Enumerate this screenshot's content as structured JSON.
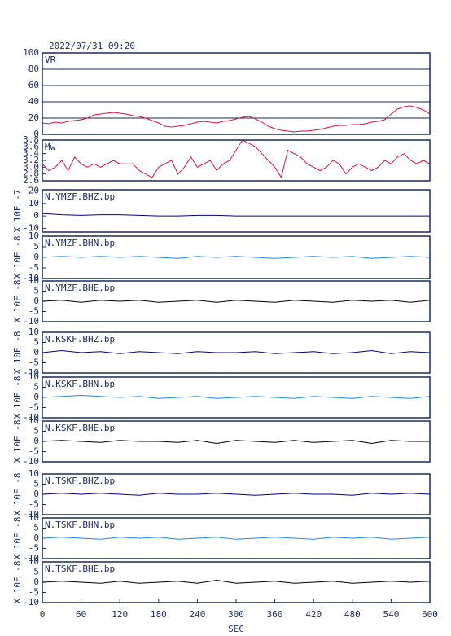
{
  "chart_data": [
    {
      "type": "line",
      "title": "2022/07/31 09:20",
      "xlim": [
        0,
        600
      ],
      "ylim": [
        0,
        100
      ],
      "yticks": [
        0,
        20,
        40,
        60,
        80,
        100
      ],
      "grid": true,
      "x": [
        0,
        10,
        20,
        30,
        40,
        50,
        60,
        70,
        80,
        90,
        100,
        110,
        120,
        130,
        140,
        150,
        160,
        170,
        180,
        190,
        200,
        210,
        220,
        230,
        240,
        250,
        260,
        270,
        280,
        290,
        300,
        310,
        320,
        330,
        340,
        350,
        360,
        370,
        380,
        390,
        400,
        410,
        420,
        430,
        440,
        450,
        460,
        470,
        480,
        490,
        500,
        510,
        520,
        530,
        540,
        550,
        560,
        570,
        580,
        590,
        600
      ],
      "series": [
        {
          "name": "VR",
          "color": "#e0103c",
          "values": [
            14,
            13,
            15,
            14,
            16,
            17,
            18,
            20,
            24,
            25,
            26,
            27,
            26,
            25,
            23,
            22,
            20,
            17,
            14,
            10,
            9,
            10,
            11,
            13,
            15,
            16,
            15,
            14,
            16,
            17,
            19,
            21,
            22,
            19,
            15,
            10,
            7,
            5,
            4,
            3,
            4,
            4,
            5,
            6,
            8,
            10,
            11,
            11,
            12,
            12,
            13,
            15,
            16,
            18,
            25,
            31,
            34,
            35,
            33,
            30,
            25
          ]
        }
      ]
    },
    {
      "type": "line",
      "xlim": [
        0,
        600
      ],
      "ylim": [
        2.6,
        3.8
      ],
      "yticks": [
        2.6,
        2.8,
        {
          "value": 3,
          "label": "3.0"
        },
        3.2,
        3.4,
        3.6,
        3.8
      ],
      "grid": false,
      "x": [
        0,
        10,
        20,
        30,
        40,
        50,
        60,
        70,
        80,
        90,
        100,
        110,
        120,
        130,
        140,
        150,
        160,
        170,
        180,
        190,
        200,
        210,
        220,
        230,
        240,
        250,
        260,
        270,
        280,
        290,
        300,
        310,
        320,
        330,
        340,
        350,
        360,
        370,
        380,
        390,
        400,
        410,
        420,
        430,
        440,
        450,
        460,
        470,
        480,
        490,
        500,
        510,
        520,
        530,
        540,
        550,
        560,
        570,
        580,
        590,
        600
      ],
      "series": [
        {
          "name": "Mw",
          "color": "#e0103c",
          "values": [
            3.1,
            2.9,
            3.0,
            3.2,
            2.9,
            3.3,
            3.1,
            3.0,
            3.1,
            3.0,
            3.1,
            3.2,
            3.1,
            3.1,
            3.1,
            2.9,
            2.8,
            2.7,
            3.0,
            3.1,
            3.2,
            2.8,
            3.0,
            3.3,
            3.0,
            3.1,
            3.2,
            2.9,
            3.1,
            3.2,
            3.5,
            3.8,
            3.7,
            3.6,
            3.4,
            3.2,
            3.0,
            2.7,
            3.5,
            3.4,
            3.3,
            3.1,
            3.0,
            2.9,
            3.0,
            3.2,
            3.1,
            2.8,
            3.0,
            3.1,
            3.0,
            2.9,
            3.0,
            3.2,
            3.1,
            3.3,
            3.4,
            3.2,
            3.1,
            3.2,
            3.1
          ]
        }
      ]
    },
    {
      "type": "line",
      "ylabel": "X 10E -7",
      "xlim": [
        0,
        600
      ],
      "ylim": [
        -13,
        21
      ],
      "yticks": [
        -10,
        0,
        10,
        20
      ],
      "grid": false,
      "x": [
        0,
        30,
        60,
        90,
        120,
        150,
        180,
        210,
        240,
        270,
        300,
        330,
        360,
        390,
        420,
        450,
        480,
        510,
        540,
        570,
        600
      ],
      "series": [
        {
          "name": "N.YMZF.BHZ.bp",
          "color": "#00008b",
          "values": [
            2,
            1,
            0.5,
            1,
            1,
            0.5,
            0,
            0,
            0.5,
            0.5,
            0,
            0,
            0,
            0,
            0,
            0,
            0,
            0,
            0,
            0,
            0
          ]
        }
      ]
    },
    {
      "type": "line",
      "ylabel": "X 10E -8",
      "xlim": [
        0,
        600
      ],
      "ylim": [
        -10,
        10
      ],
      "yticks": [
        -10,
        -5,
        0,
        5,
        10
      ],
      "grid": false,
      "x": [
        0,
        30,
        60,
        90,
        120,
        150,
        180,
        210,
        240,
        270,
        300,
        330,
        360,
        390,
        420,
        450,
        480,
        510,
        540,
        570,
        600
      ],
      "series": [
        {
          "name": "N.YMZF.BHN.bp",
          "color": "#1e88e5",
          "values": [
            0,
            0.5,
            0,
            0.5,
            0,
            0.5,
            0,
            -0.5,
            0.5,
            0,
            0.5,
            0,
            -0.5,
            0,
            0.5,
            0,
            0.5,
            -0.5,
            0,
            0.5,
            0
          ]
        }
      ]
    },
    {
      "type": "line",
      "ylabel": "X 10E -8",
      "xlim": [
        0,
        600
      ],
      "ylim": [
        -10,
        10
      ],
      "yticks": [
        -10,
        -5,
        0,
        5,
        10
      ],
      "grid": false,
      "x": [
        0,
        30,
        60,
        90,
        120,
        150,
        180,
        210,
        240,
        270,
        300,
        330,
        360,
        390,
        420,
        450,
        480,
        510,
        540,
        570,
        600
      ],
      "series": [
        {
          "name": "N.YMZF.BHE.bp",
          "color": "#000000",
          "values": [
            0,
            0.5,
            -0.5,
            0.5,
            0,
            0.5,
            -0.5,
            0,
            0.5,
            -0.5,
            0.5,
            0,
            -0.5,
            0.5,
            0,
            -0.5,
            0.5,
            0,
            0.5,
            -0.5,
            0.5
          ]
        }
      ]
    },
    {
      "type": "line",
      "ylabel": "X 10E -8",
      "xlim": [
        0,
        600
      ],
      "ylim": [
        -10,
        10
      ],
      "yticks": [
        -10,
        -5,
        0,
        5,
        10
      ],
      "grid": false,
      "x": [
        0,
        30,
        60,
        90,
        120,
        150,
        180,
        210,
        240,
        270,
        300,
        330,
        360,
        390,
        420,
        450,
        480,
        510,
        540,
        570,
        600
      ],
      "series": [
        {
          "name": "N.KSKF.BHZ.bp",
          "color": "#00008b",
          "values": [
            0,
            1,
            0,
            0.5,
            -0.5,
            0.5,
            0,
            -0.5,
            0.5,
            0,
            0,
            0.5,
            -0.5,
            0,
            0.5,
            -0.5,
            0,
            1,
            -0.5,
            0.5,
            0
          ]
        }
      ]
    },
    {
      "type": "line",
      "ylabel": "X 10E -8",
      "xlim": [
        0,
        600
      ],
      "ylim": [
        -10,
        10
      ],
      "yticks": [
        -10,
        -5,
        0,
        5,
        10
      ],
      "grid": false,
      "x": [
        0,
        30,
        60,
        90,
        120,
        150,
        180,
        210,
        240,
        270,
        300,
        330,
        360,
        390,
        420,
        450,
        480,
        510,
        540,
        570,
        600
      ],
      "series": [
        {
          "name": "N.KSKF.BHN.bp",
          "color": "#1e88e5",
          "values": [
            0,
            0.5,
            1,
            0.5,
            0,
            0.5,
            -0.5,
            0,
            0.5,
            -0.5,
            0,
            0.5,
            0,
            -0.5,
            0.5,
            0,
            -0.5,
            0.5,
            0,
            -0.5,
            0.5
          ]
        }
      ]
    },
    {
      "type": "line",
      "ylabel": "X 10E -8",
      "xlim": [
        0,
        600
      ],
      "ylim": [
        -10,
        10
      ],
      "yticks": [
        -10,
        -5,
        0,
        5,
        10
      ],
      "grid": false,
      "x": [
        0,
        30,
        60,
        90,
        120,
        150,
        180,
        210,
        240,
        270,
        300,
        330,
        360,
        390,
        420,
        450,
        480,
        510,
        540,
        570,
        600
      ],
      "series": [
        {
          "name": "N.KSKF.BHE.bp",
          "color": "#000000",
          "values": [
            0,
            0.5,
            0,
            -0.5,
            0.5,
            0,
            0,
            -0.5,
            0.5,
            -1,
            0.5,
            0,
            -0.5,
            0.5,
            -0.5,
            0,
            0.5,
            -1,
            0.5,
            0,
            0
          ]
        }
      ]
    },
    {
      "type": "line",
      "ylabel": "X 10E -8",
      "xlim": [
        0,
        600
      ],
      "ylim": [
        -10,
        10
      ],
      "yticks": [
        -10,
        -5,
        0,
        5,
        10
      ],
      "grid": false,
      "x": [
        0,
        30,
        60,
        90,
        120,
        150,
        180,
        210,
        240,
        270,
        300,
        330,
        360,
        390,
        420,
        450,
        480,
        510,
        540,
        570,
        600
      ],
      "series": [
        {
          "name": "N.TSKF.BHZ.bp",
          "color": "#00008b",
          "values": [
            0,
            0.5,
            0,
            0.5,
            0,
            -0.5,
            0.5,
            0,
            0,
            0.5,
            0,
            -0.5,
            0,
            0.5,
            0,
            0,
            -0.5,
            0.5,
            0,
            0.5,
            0
          ]
        }
      ]
    },
    {
      "type": "line",
      "ylabel": "X 10E -8",
      "xlim": [
        0,
        600
      ],
      "ylim": [
        -10,
        10
      ],
      "yticks": [
        -10,
        -5,
        0,
        5,
        10
      ],
      "grid": false,
      "x": [
        0,
        30,
        60,
        90,
        120,
        150,
        180,
        210,
        240,
        270,
        300,
        330,
        360,
        390,
        420,
        450,
        480,
        510,
        540,
        570,
        600
      ],
      "series": [
        {
          "name": "N.TSKF.BHN.bp",
          "color": "#1e88e5",
          "values": [
            0,
            0.5,
            0,
            -0.5,
            0.5,
            0,
            0.5,
            -0.5,
            0,
            0.5,
            -0.5,
            0,
            0.5,
            0,
            -0.5,
            0.5,
            0,
            0.5,
            -0.5,
            0,
            0.5
          ]
        }
      ]
    },
    {
      "type": "line",
      "ylabel": "X 10E -8",
      "xlabel": "SEC",
      "xlim": [
        0,
        600
      ],
      "xticks": [
        0,
        60,
        120,
        180,
        240,
        300,
        360,
        420,
        480,
        540,
        600
      ],
      "ylim": [
        -10,
        10
      ],
      "yticks": [
        -10,
        -5,
        0,
        5,
        10
      ],
      "grid": false,
      "x": [
        0,
        30,
        60,
        90,
        120,
        150,
        180,
        210,
        240,
        270,
        300,
        330,
        360,
        390,
        420,
        450,
        480,
        510,
        540,
        570,
        600
      ],
      "series": [
        {
          "name": "N.TSKF.BHE.bp",
          "color": "#000000",
          "values": [
            0,
            0.5,
            0,
            -0.5,
            0.5,
            -0.5,
            0,
            0.5,
            -0.5,
            1,
            -0.5,
            0,
            0.5,
            -0.5,
            0,
            0.5,
            -0.5,
            0,
            0.5,
            0,
            0.5
          ]
        }
      ]
    }
  ]
}
